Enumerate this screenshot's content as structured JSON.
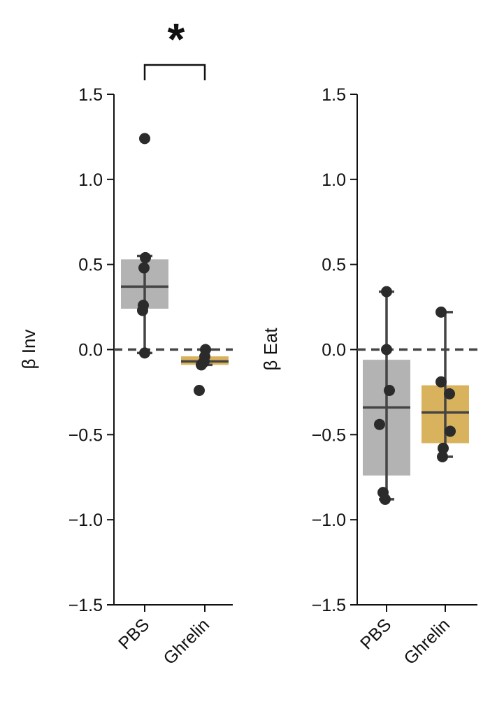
{
  "chart_data": [
    {
      "type": "box",
      "ylabel": "β Inv",
      "ylim": [
        -1.5,
        1.5
      ],
      "yticks": [
        1.5,
        1.0,
        0.5,
        0.0,
        -0.5,
        -1.0,
        -1.5
      ],
      "ytick_labels": [
        "1.5",
        "1.0",
        "0.5",
        "0.0",
        "−0.5",
        "−1.0",
        "−1.5"
      ],
      "categories": [
        "PBS",
        "Ghrelin"
      ],
      "reference_line": 0.0,
      "significance": {
        "between": [
          "PBS",
          "Ghrelin"
        ],
        "label": "*"
      },
      "groups": [
        {
          "name": "PBS",
          "color": "#b3b3b3",
          "q1": 0.24,
          "median": 0.37,
          "q3": 0.53,
          "whisker_low": -0.02,
          "whisker_high": 0.55,
          "points": [
            1.24,
            0.54,
            0.48,
            0.26,
            0.23,
            -0.02
          ]
        },
        {
          "name": "Ghrelin",
          "color": "#d8b25c",
          "q1": -0.09,
          "median": -0.07,
          "q3": -0.04,
          "whisker_low": -0.09,
          "whisker_high": 0.0,
          "points": [
            0.0,
            -0.04,
            -0.07,
            -0.08,
            -0.09,
            -0.24
          ]
        }
      ]
    },
    {
      "type": "box",
      "ylabel": "β Eat",
      "ylim": [
        -1.5,
        1.5
      ],
      "yticks": [
        1.5,
        1.0,
        0.5,
        0.0,
        -0.5,
        -1.0,
        -1.5
      ],
      "ytick_labels": [
        "1.5",
        "1.0",
        "0.5",
        "0.0",
        "−0.5",
        "−1.0",
        "−1.5"
      ],
      "categories": [
        "PBS",
        "Ghrelin"
      ],
      "reference_line": 0.0,
      "groups": [
        {
          "name": "PBS",
          "color": "#b3b3b3",
          "q1": -0.74,
          "median": -0.34,
          "q3": -0.06,
          "whisker_low": -0.88,
          "whisker_high": 0.34,
          "points": [
            0.34,
            0.0,
            -0.24,
            -0.44,
            -0.84,
            -0.88
          ]
        },
        {
          "name": "Ghrelin",
          "color": "#d8b25c",
          "q1": -0.55,
          "median": -0.37,
          "q3": -0.21,
          "whisker_low": -0.63,
          "whisker_high": 0.22,
          "points": [
            0.22,
            -0.19,
            -0.26,
            -0.48,
            -0.58,
            -0.63
          ]
        }
      ]
    }
  ]
}
